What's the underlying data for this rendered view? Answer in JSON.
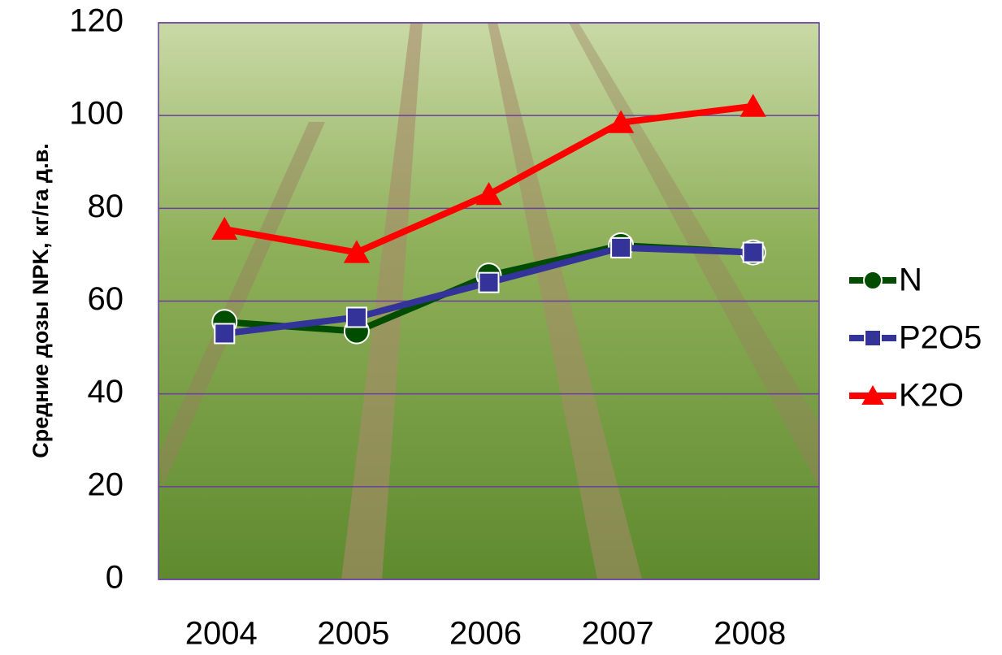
{
  "chart_data": {
    "type": "line",
    "y_label": "Средние дозы NPK, кг/га д.в.",
    "categories": [
      "2004",
      "2005",
      "2006",
      "2007",
      "2008"
    ],
    "series": [
      {
        "name": "N",
        "color": "#004d00",
        "marker": "circle",
        "values": [
          55.5,
          53.5,
          65.5,
          72,
          70.5
        ]
      },
      {
        "name": "P2O5",
        "color": "#333399",
        "marker": "square",
        "values": [
          53,
          56.5,
          64,
          71.5,
          70.5
        ]
      },
      {
        "name": "K2O",
        "color": "#ff0000",
        "marker": "triangle",
        "values": [
          75.5,
          70.5,
          83,
          98.5,
          102
        ]
      }
    ],
    "ylim": [
      0,
      120
    ],
    "yticks": [
      0,
      20,
      40,
      60,
      80,
      100,
      120
    ],
    "grid": true,
    "legend": "right"
  }
}
